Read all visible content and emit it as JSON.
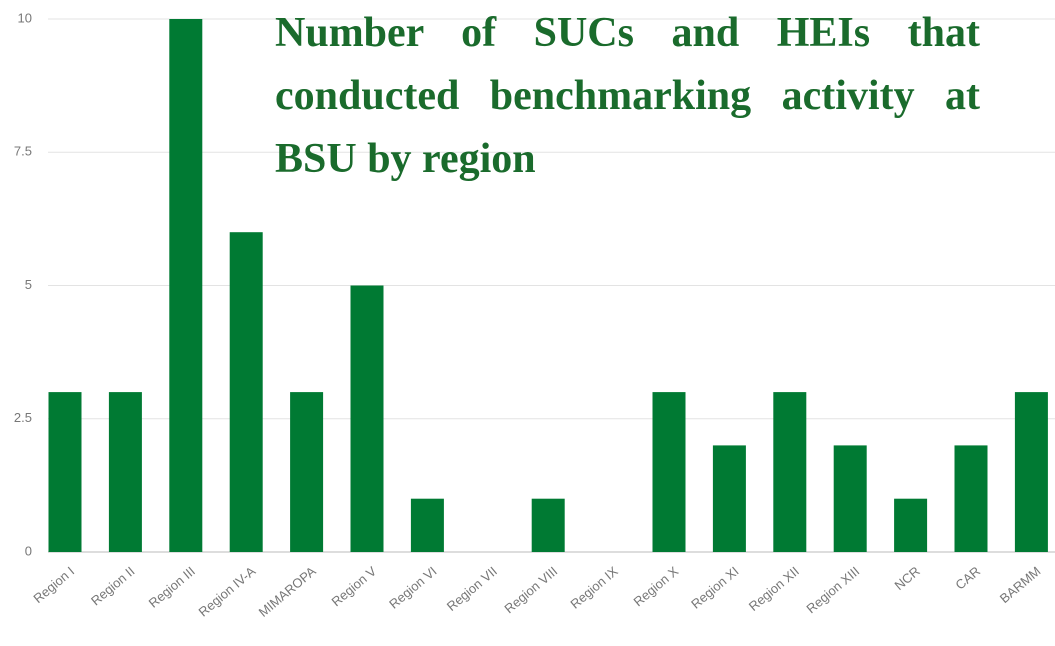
{
  "chart_data": {
    "type": "bar",
    "title": "Number of SUCs and HEIs that conducted benchmarking activity at BSU by region",
    "categories": [
      "Region I",
      "Region II",
      "Region III",
      "Region IV-A",
      "MIMAROPA",
      "Region V",
      "Region VI",
      "Region VII",
      "Region VIII",
      "Region IX",
      "Region X",
      "Region XI",
      "Region XII",
      "Region XIII",
      "NCR",
      "CAR",
      "BARMM"
    ],
    "values": [
      3,
      3,
      10,
      6,
      3,
      5,
      1,
      0,
      1,
      0,
      3,
      2,
      3,
      2,
      1,
      2,
      3
    ],
    "color": "#007a33",
    "ylim": [
      0,
      10
    ],
    "yticks": [
      0,
      2.5,
      5,
      7.5,
      10
    ],
    "grid": true
  }
}
